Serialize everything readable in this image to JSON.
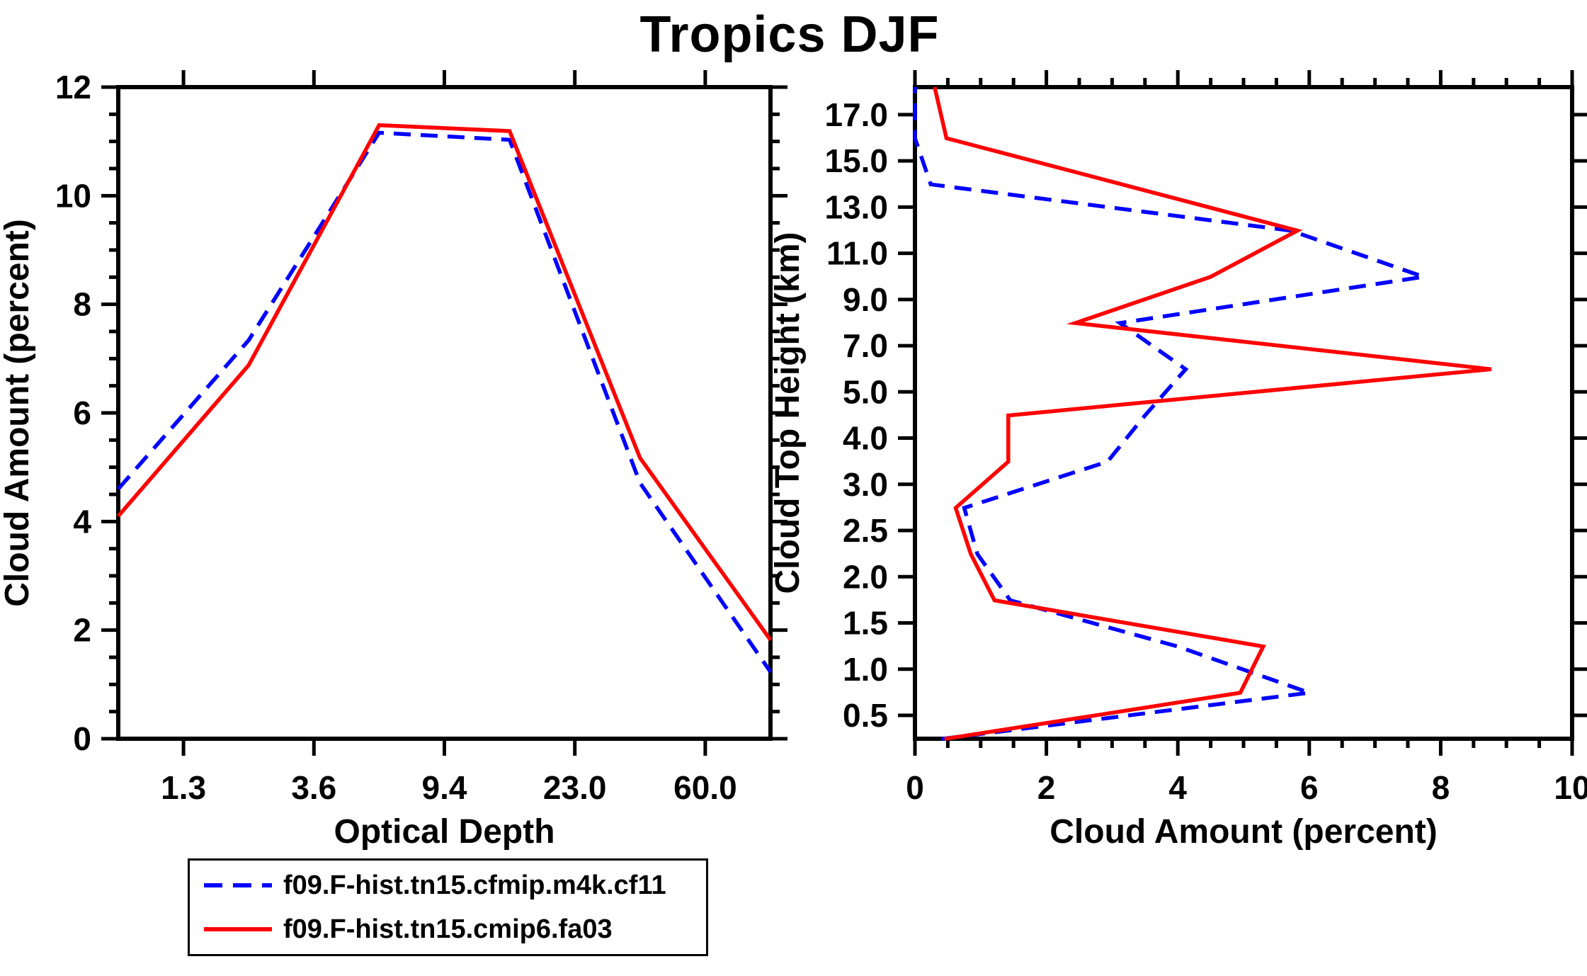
{
  "title": "Tropics DJF",
  "colors": {
    "blue": "#0000ff",
    "red": "#ff0000",
    "axis": "#000000",
    "background": "#ffffff"
  },
  "legend": {
    "items": [
      {
        "label": "f09.F-hist.tn15.cfmip.m4k.cf11",
        "color": "#0000ff",
        "style": "dashed"
      },
      {
        "label": "f09.F-hist.tn15.cmip6.fa03",
        "color": "#ff0000",
        "style": "solid"
      }
    ]
  },
  "chart_data": [
    {
      "type": "line",
      "panel": "left",
      "title": "",
      "xlabel": "Optical Depth",
      "ylabel": "Cloud Amount (percent)",
      "x_tick_labels": [
        "1.3",
        "3.6",
        "9.4",
        "23.0",
        "60.0"
      ],
      "x_layout_note": "6 data points at optical-depth bin centers; labeled ticks are bin edges located midway between consecutive points; first/last points sit on the side axes",
      "ylim": [
        0,
        12
      ],
      "y_major_ticks": [
        0,
        2,
        4,
        6,
        8,
        10,
        12
      ],
      "y_minor_step": 0.5,
      "grid": false,
      "series": [
        {
          "name": "f09.F-hist.tn15.cfmip.m4k.cf11",
          "color": "#0000ff",
          "dash": true,
          "values": [
            4.6,
            7.34,
            11.16,
            11.03,
            4.71,
            1.23
          ]
        },
        {
          "name": "f09.F-hist.tn15.cmip6.fa03",
          "color": "#ff0000",
          "dash": false,
          "values": [
            4.1,
            6.88,
            11.3,
            11.19,
            5.17,
            1.82
          ]
        }
      ]
    },
    {
      "type": "line",
      "panel": "right",
      "title": "",
      "xlabel": "Cloud Amount (percent)",
      "ylabel": "Cloud Top Height (km)",
      "xlim": [
        0,
        10
      ],
      "x_major_ticks": [
        0,
        2,
        4,
        6,
        8,
        10
      ],
      "x_minor_step": 0.5,
      "y_tick_labels": [
        "0.5",
        "1.0",
        "1.5",
        "2.0",
        "2.5",
        "3.0",
        "4.0",
        "5.0",
        "7.0",
        "9.0",
        "11.0",
        "13.0",
        "15.0",
        "17.0"
      ],
      "y_layout_note": "14 evenly spaced category ticks (height bin edges); data points lie midway between ticks at bin centers; lowest/highest points sit on the bottom/top axes",
      "height_bin_centers": [
        0.25,
        0.75,
        1.25,
        1.75,
        2.25,
        2.75,
        3.5,
        4.5,
        6.0,
        8.0,
        10.0,
        12.0,
        14.0,
        16.0,
        17.5
      ],
      "grid": false,
      "series": [
        {
          "name": "f09.F-hist.tn15.cfmip.m4k.cf11",
          "color": "#0000ff",
          "dash": true,
          "values": [
            0.4,
            6.0,
            4.0,
            1.45,
            0.95,
            0.75,
            2.93,
            3.5,
            4.12,
            3.12,
            7.74,
            5.72,
            0.24,
            0.0,
            0.0
          ]
        },
        {
          "name": "f09.F-hist.tn15.cmip6.fa03",
          "color": "#ff0000",
          "dash": false,
          "values": [
            0.45,
            4.95,
            5.3,
            1.21,
            0.85,
            0.62,
            1.42,
            1.42,
            8.77,
            2.44,
            4.5,
            5.82,
            3.15,
            0.48,
            0.3
          ]
        }
      ]
    }
  ]
}
